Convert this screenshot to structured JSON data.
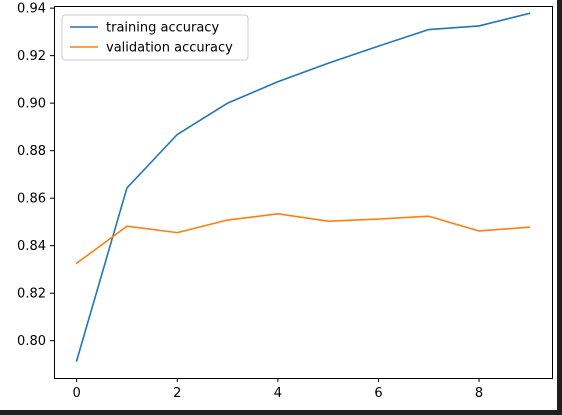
{
  "chart_data": {
    "type": "line",
    "title": "",
    "xlabel": "",
    "ylabel": "",
    "x": [
      0,
      1,
      2,
      3,
      4,
      5,
      6,
      7,
      8,
      9
    ],
    "series": [
      {
        "name": "training accuracy",
        "color": "#1f77b4",
        "values": [
          0.7915,
          0.8643,
          0.8868,
          0.9,
          0.909,
          0.9168,
          0.924,
          0.931,
          0.9325,
          0.9378
        ]
      },
      {
        "name": "validation accuracy",
        "color": "#ff7f0e",
        "values": [
          0.8326,
          0.8482,
          0.8455,
          0.8508,
          0.8534,
          0.8503,
          0.8512,
          0.8524,
          0.8462,
          0.8478
        ]
      }
    ],
    "xlim": [
      -0.45,
      9.45
    ],
    "ylim": [
      0.7843,
      0.9409
    ],
    "x_ticks": [
      0,
      2,
      4,
      6,
      8
    ],
    "x_tick_labels": [
      "0",
      "2",
      "4",
      "6",
      "8"
    ],
    "y_ticks": [
      0.8,
      0.82,
      0.84,
      0.86,
      0.88,
      0.9,
      0.92,
      0.94
    ],
    "y_tick_labels": [
      "0.80",
      "0.82",
      "0.84",
      "0.86",
      "0.88",
      "0.90",
      "0.92",
      "0.94"
    ],
    "grid": false,
    "legend_position": "top-left"
  }
}
